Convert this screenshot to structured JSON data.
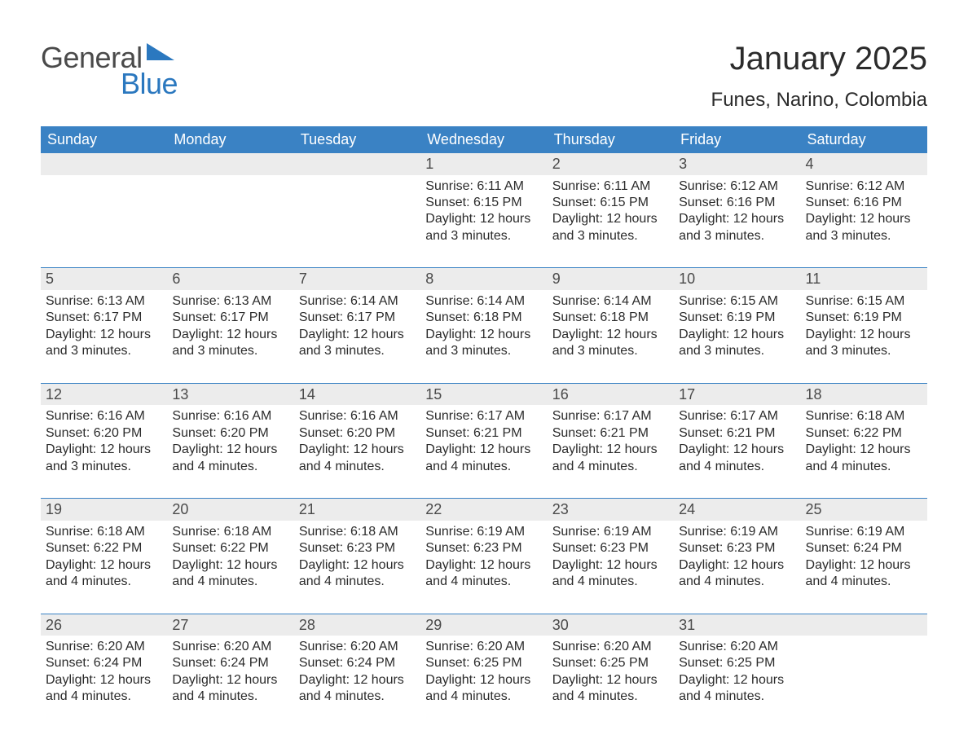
{
  "brand": {
    "word1": "General",
    "word2": "Blue",
    "text_color": "#4a4a4a",
    "accent_color": "#2b78bf"
  },
  "title": {
    "month": "January 2025",
    "location": "Funes, Narino, Colombia"
  },
  "colors": {
    "header_bg": "#3a82c4",
    "header_text": "#ffffff",
    "daynum_bg": "#ececec",
    "daynum_text": "#4a4a4a",
    "body_text": "#2b2b2b",
    "week_sep": "#3a82c4",
    "page_bg": "#ffffff"
  },
  "fonts": {
    "title_pt": 40,
    "location_pt": 24,
    "weekday_pt": 18,
    "daynum_pt": 18,
    "body_pt": 16
  },
  "weekdays": [
    "Sunday",
    "Monday",
    "Tuesday",
    "Wednesday",
    "Thursday",
    "Friday",
    "Saturday"
  ],
  "weeks": [
    [
      null,
      null,
      null,
      {
        "n": "1",
        "sr": "Sunrise: 6:11 AM",
        "ss": "Sunset: 6:15 PM",
        "d1": "Daylight: 12 hours",
        "d2": "and 3 minutes."
      },
      {
        "n": "2",
        "sr": "Sunrise: 6:11 AM",
        "ss": "Sunset: 6:15 PM",
        "d1": "Daylight: 12 hours",
        "d2": "and 3 minutes."
      },
      {
        "n": "3",
        "sr": "Sunrise: 6:12 AM",
        "ss": "Sunset: 6:16 PM",
        "d1": "Daylight: 12 hours",
        "d2": "and 3 minutes."
      },
      {
        "n": "4",
        "sr": "Sunrise: 6:12 AM",
        "ss": "Sunset: 6:16 PM",
        "d1": "Daylight: 12 hours",
        "d2": "and 3 minutes."
      }
    ],
    [
      {
        "n": "5",
        "sr": "Sunrise: 6:13 AM",
        "ss": "Sunset: 6:17 PM",
        "d1": "Daylight: 12 hours",
        "d2": "and 3 minutes."
      },
      {
        "n": "6",
        "sr": "Sunrise: 6:13 AM",
        "ss": "Sunset: 6:17 PM",
        "d1": "Daylight: 12 hours",
        "d2": "and 3 minutes."
      },
      {
        "n": "7",
        "sr": "Sunrise: 6:14 AM",
        "ss": "Sunset: 6:17 PM",
        "d1": "Daylight: 12 hours",
        "d2": "and 3 minutes."
      },
      {
        "n": "8",
        "sr": "Sunrise: 6:14 AM",
        "ss": "Sunset: 6:18 PM",
        "d1": "Daylight: 12 hours",
        "d2": "and 3 minutes."
      },
      {
        "n": "9",
        "sr": "Sunrise: 6:14 AM",
        "ss": "Sunset: 6:18 PM",
        "d1": "Daylight: 12 hours",
        "d2": "and 3 minutes."
      },
      {
        "n": "10",
        "sr": "Sunrise: 6:15 AM",
        "ss": "Sunset: 6:19 PM",
        "d1": "Daylight: 12 hours",
        "d2": "and 3 minutes."
      },
      {
        "n": "11",
        "sr": "Sunrise: 6:15 AM",
        "ss": "Sunset: 6:19 PM",
        "d1": "Daylight: 12 hours",
        "d2": "and 3 minutes."
      }
    ],
    [
      {
        "n": "12",
        "sr": "Sunrise: 6:16 AM",
        "ss": "Sunset: 6:20 PM",
        "d1": "Daylight: 12 hours",
        "d2": "and 3 minutes."
      },
      {
        "n": "13",
        "sr": "Sunrise: 6:16 AM",
        "ss": "Sunset: 6:20 PM",
        "d1": "Daylight: 12 hours",
        "d2": "and 4 minutes."
      },
      {
        "n": "14",
        "sr": "Sunrise: 6:16 AM",
        "ss": "Sunset: 6:20 PM",
        "d1": "Daylight: 12 hours",
        "d2": "and 4 minutes."
      },
      {
        "n": "15",
        "sr": "Sunrise: 6:17 AM",
        "ss": "Sunset: 6:21 PM",
        "d1": "Daylight: 12 hours",
        "d2": "and 4 minutes."
      },
      {
        "n": "16",
        "sr": "Sunrise: 6:17 AM",
        "ss": "Sunset: 6:21 PM",
        "d1": "Daylight: 12 hours",
        "d2": "and 4 minutes."
      },
      {
        "n": "17",
        "sr": "Sunrise: 6:17 AM",
        "ss": "Sunset: 6:21 PM",
        "d1": "Daylight: 12 hours",
        "d2": "and 4 minutes."
      },
      {
        "n": "18",
        "sr": "Sunrise: 6:18 AM",
        "ss": "Sunset: 6:22 PM",
        "d1": "Daylight: 12 hours",
        "d2": "and 4 minutes."
      }
    ],
    [
      {
        "n": "19",
        "sr": "Sunrise: 6:18 AM",
        "ss": "Sunset: 6:22 PM",
        "d1": "Daylight: 12 hours",
        "d2": "and 4 minutes."
      },
      {
        "n": "20",
        "sr": "Sunrise: 6:18 AM",
        "ss": "Sunset: 6:22 PM",
        "d1": "Daylight: 12 hours",
        "d2": "and 4 minutes."
      },
      {
        "n": "21",
        "sr": "Sunrise: 6:18 AM",
        "ss": "Sunset: 6:23 PM",
        "d1": "Daylight: 12 hours",
        "d2": "and 4 minutes."
      },
      {
        "n": "22",
        "sr": "Sunrise: 6:19 AM",
        "ss": "Sunset: 6:23 PM",
        "d1": "Daylight: 12 hours",
        "d2": "and 4 minutes."
      },
      {
        "n": "23",
        "sr": "Sunrise: 6:19 AM",
        "ss": "Sunset: 6:23 PM",
        "d1": "Daylight: 12 hours",
        "d2": "and 4 minutes."
      },
      {
        "n": "24",
        "sr": "Sunrise: 6:19 AM",
        "ss": "Sunset: 6:23 PM",
        "d1": "Daylight: 12 hours",
        "d2": "and 4 minutes."
      },
      {
        "n": "25",
        "sr": "Sunrise: 6:19 AM",
        "ss": "Sunset: 6:24 PM",
        "d1": "Daylight: 12 hours",
        "d2": "and 4 minutes."
      }
    ],
    [
      {
        "n": "26",
        "sr": "Sunrise: 6:20 AM",
        "ss": "Sunset: 6:24 PM",
        "d1": "Daylight: 12 hours",
        "d2": "and 4 minutes."
      },
      {
        "n": "27",
        "sr": "Sunrise: 6:20 AM",
        "ss": "Sunset: 6:24 PM",
        "d1": "Daylight: 12 hours",
        "d2": "and 4 minutes."
      },
      {
        "n": "28",
        "sr": "Sunrise: 6:20 AM",
        "ss": "Sunset: 6:24 PM",
        "d1": "Daylight: 12 hours",
        "d2": "and 4 minutes."
      },
      {
        "n": "29",
        "sr": "Sunrise: 6:20 AM",
        "ss": "Sunset: 6:25 PM",
        "d1": "Daylight: 12 hours",
        "d2": "and 4 minutes."
      },
      {
        "n": "30",
        "sr": "Sunrise: 6:20 AM",
        "ss": "Sunset: 6:25 PM",
        "d1": "Daylight: 12 hours",
        "d2": "and 4 minutes."
      },
      {
        "n": "31",
        "sr": "Sunrise: 6:20 AM",
        "ss": "Sunset: 6:25 PM",
        "d1": "Daylight: 12 hours",
        "d2": "and 4 minutes."
      },
      null
    ]
  ]
}
